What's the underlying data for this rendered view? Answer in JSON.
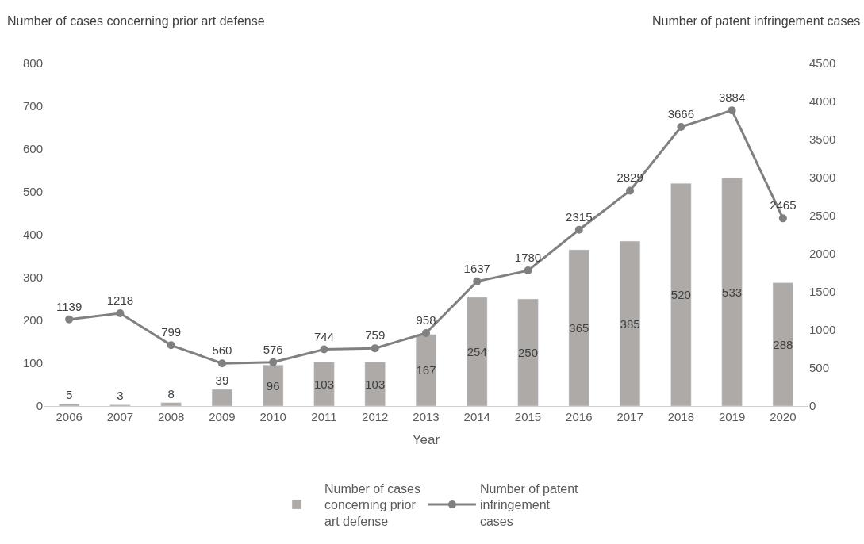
{
  "chart_data": {
    "type": "bar",
    "xlabel": "Year",
    "ylabel": "Number of cases concerning prior art defense",
    "y2label": "Number of patent infringement cases",
    "categories": [
      "2006",
      "2007",
      "2008",
      "2009",
      "2010",
      "2011",
      "2012",
      "2013",
      "2014",
      "2015",
      "2016",
      "2017",
      "2018",
      "2019",
      "2020"
    ],
    "series": [
      {
        "name": "Number of cases concerning prior art defense",
        "color": "#aeaaa7",
        "values": [
          5,
          3,
          8,
          39,
          96,
          103,
          103,
          167,
          254,
          250,
          365,
          385,
          520,
          533,
          288
        ]
      },
      {
        "name": "Number of patent infringement cases",
        "type": "line",
        "axis": "y2",
        "color": "#808080",
        "marker": "circle",
        "line_style": "solid",
        "values": [
          1139,
          1218,
          799,
          560,
          576,
          744,
          759,
          958,
          1637,
          1780,
          2315,
          2829,
          3666,
          3884,
          2465
        ]
      }
    ],
    "ylim": [
      0,
      800
    ],
    "yticks": [
      0,
      100,
      200,
      300,
      400,
      500,
      600,
      700,
      800
    ],
    "y2lim": [
      0,
      4500
    ],
    "y2ticks": [
      0,
      500,
      1000,
      1500,
      2000,
      2500,
      3000,
      3500,
      4000,
      4500
    ],
    "data_labels": true,
    "legend": "bottom"
  }
}
